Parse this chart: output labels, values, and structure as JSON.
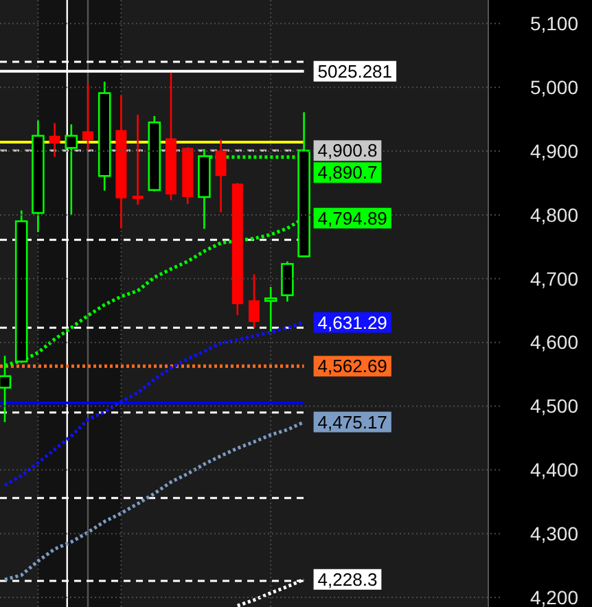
{
  "chart_data": {
    "type": "candlestick",
    "categories": [
      null,
      null,
      null,
      null,
      null,
      null,
      null,
      null,
      null,
      null,
      null,
      null,
      null,
      null,
      null,
      null,
      null,
      null,
      null
    ],
    "ohlc": [
      [
        4529,
        4579,
        4475,
        4547
      ],
      [
        4570,
        4807,
        4568,
        4790
      ],
      [
        4803,
        4948,
        4773,
        4924
      ],
      [
        4924,
        4944,
        4891,
        4912
      ],
      [
        4905,
        4942,
        4800,
        4924
      ],
      [
        4931,
        5006,
        4901,
        4917
      ],
      [
        4861,
        5009,
        4838,
        4991
      ],
      [
        4933,
        4987,
        4779,
        4826
      ],
      [
        4830,
        4957,
        4816,
        4825
      ],
      [
        4839,
        4955,
        4837,
        4945
      ],
      [
        4920,
        5023,
        4823,
        4832
      ],
      [
        4905,
        4906,
        4817,
        4828
      ],
      [
        4828,
        4903,
        4778,
        4892
      ],
      [
        4901,
        4918,
        4804,
        4861
      ],
      [
        4849,
        4850,
        4643,
        4660
      ],
      [
        4666,
        4707,
        4623,
        4632
      ],
      [
        4665,
        4687,
        4617,
        4669
      ],
      [
        4674,
        4727,
        4664,
        4723
      ],
      [
        4735,
        4961,
        4735,
        4900.8
      ]
    ],
    "colors": [
      "#00ff00",
      "#00ff00",
      "#00ff00",
      "#ff0000",
      "#00ff00",
      "#ff0000",
      "#00ff00",
      "#ff0000",
      "#ff0000",
      "#00ff00",
      "#ff0000",
      "#ff0000",
      "#00ff00",
      "#ff0000",
      "#ff0000",
      "#ff0000",
      "#00ff00",
      "#00ff00",
      "#00ff00"
    ],
    "series": [
      {
        "type": "line",
        "color": "#00ff00",
        "line_style": "dotted",
        "values": [
          4564,
          4571,
          4584,
          4605,
          4623,
          4642,
          4659,
          4672,
          4681,
          4702,
          4715,
          4727,
          4743,
          4756,
          null,
          4763,
          4769,
          4779,
          4794.89
        ],
        "value_labels": [
          null,
          null,
          null,
          null,
          null,
          null,
          null,
          null,
          null,
          null,
          null,
          null,
          null,
          null,
          null,
          null,
          null,
          null,
          "4,794.89"
        ]
      },
      {
        "type": "line",
        "color": "#1010ff",
        "line_style": "dotted",
        "values": [
          4376,
          4391,
          4411,
          4432,
          4453,
          4479,
          4491,
          4507,
          4521,
          4542,
          4560,
          4574,
          4586,
          4599,
          4604,
          4610,
          4616,
          4623,
          4631.29
        ],
        "value_labels": [
          null,
          null,
          null,
          null,
          null,
          null,
          null,
          null,
          null,
          null,
          null,
          null,
          null,
          null,
          null,
          null,
          null,
          null,
          "4,631.29"
        ]
      },
      {
        "type": "line",
        "color": "#7b9cc4",
        "line_style": "dotted",
        "values": [
          4228,
          4235,
          4257,
          4276,
          4287,
          4302,
          4319,
          4332,
          4347,
          4363,
          4381,
          4394,
          4409,
          4422,
          4434,
          4444,
          4455,
          4463,
          4475.17
        ],
        "value_labels": [
          null,
          null,
          null,
          null,
          null,
          null,
          null,
          null,
          null,
          null,
          null,
          null,
          null,
          null,
          null,
          null,
          null,
          null,
          "4,475.17"
        ]
      },
      {
        "type": "line",
        "color": "#ffffff",
        "line_style": "dotted",
        "values": [
          null,
          null,
          null,
          null,
          null,
          null,
          null,
          null,
          null,
          null,
          null,
          null,
          null,
          null,
          4187,
          4196,
          4207,
          4217,
          4228.3
        ],
        "value_labels": [
          null,
          null,
          null,
          null,
          null,
          null,
          null,
          null,
          null,
          null,
          null,
          null,
          null,
          null,
          null,
          null,
          null,
          null,
          "4,228.3"
        ]
      },
      {
        "type": "line",
        "color": "#00ff00",
        "line_style": "dotted",
        "values": [
          null,
          null,
          null,
          null,
          null,
          null,
          null,
          null,
          null,
          null,
          null,
          null,
          4890.7,
          null,
          4890.7,
          4890.7,
          4890.7,
          4890.7,
          4890.7
        ],
        "value_labels": [
          null,
          null,
          null,
          null,
          null,
          null,
          null,
          null,
          null,
          null,
          null,
          null,
          null,
          null,
          null,
          null,
          null,
          null,
          "4,890.7"
        ]
      }
    ],
    "ref_lines": [
      {
        "axis": "y",
        "value": 5025.281,
        "label": "5025.281",
        "color": "#ffffff",
        "line_style": "solid"
      },
      {
        "axis": "y",
        "value": 5040,
        "color": "#ffffff",
        "line_style": "dashed"
      },
      {
        "axis": "y",
        "value": 4914,
        "color": "#ffff00",
        "line_style": "solid"
      },
      {
        "axis": "y",
        "value": 4900.8,
        "label": "4,900.8",
        "color": "#c8c8c8",
        "line_style": "dashed"
      },
      {
        "axis": "y",
        "value": 4761,
        "color": "#ffffff",
        "line_style": "dashed"
      },
      {
        "axis": "y",
        "value": 4623,
        "color": "#ffffff",
        "line_style": "dashed"
      },
      {
        "axis": "y",
        "value": 4562.69,
        "label": "4,562.69",
        "color": "#ff6a20",
        "line_style": "dotted"
      },
      {
        "axis": "y",
        "value": 4505,
        "color": "#0000ff",
        "line_style": "solid"
      },
      {
        "axis": "y",
        "value": 4490,
        "color": "#ffffff",
        "line_style": "dashed"
      },
      {
        "axis": "y",
        "value": 4356,
        "color": "#ffffff",
        "line_style": "dashed"
      },
      {
        "axis": "y",
        "value": 4226,
        "color": "#ffffff",
        "line_style": "dashed"
      }
    ],
    "ylim": [
      4185,
      5137
    ],
    "yticks": [
      {
        "value": 5100,
        "label": "5,100"
      },
      {
        "value": 5000,
        "label": "5,000"
      },
      {
        "value": 4900,
        "label": "4,900"
      },
      {
        "value": 4800,
        "label": "4,800"
      },
      {
        "value": 4700,
        "label": "4,700"
      },
      {
        "value": 4600,
        "label": "4,600"
      },
      {
        "value": 4500,
        "label": "4,500"
      },
      {
        "value": 4400,
        "label": "4,400"
      },
      {
        "value": 4300,
        "label": "4,300"
      },
      {
        "value": 4200,
        "label": "4,200"
      }
    ],
    "grid": true,
    "tick_labels": "y"
  }
}
